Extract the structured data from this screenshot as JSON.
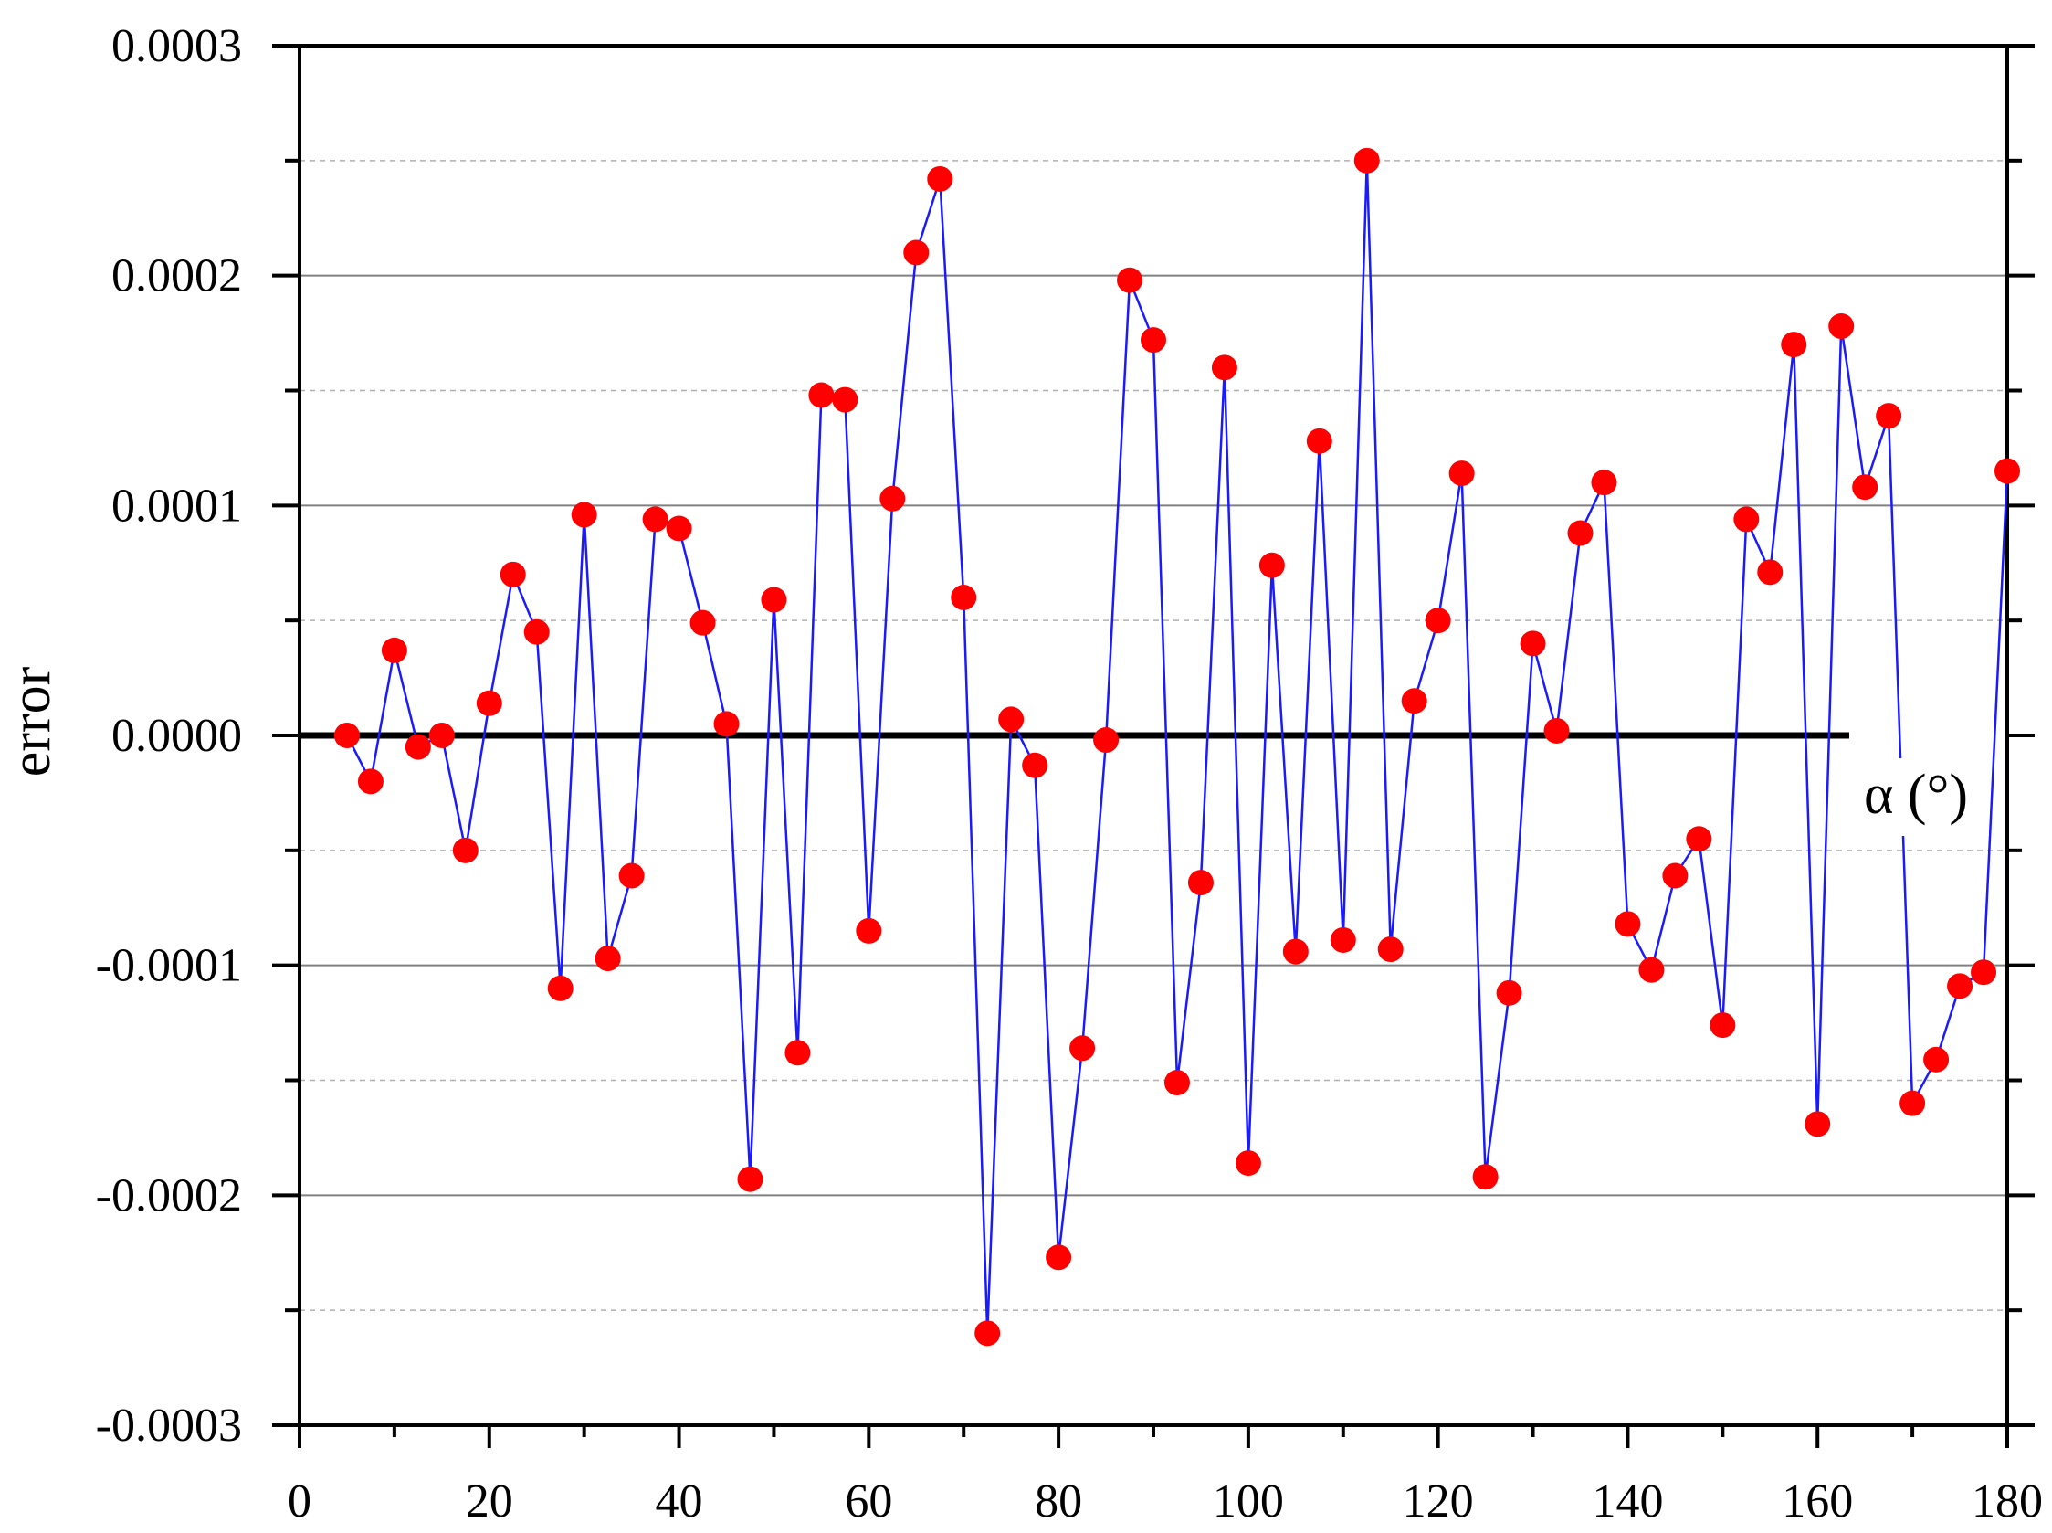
{
  "chart_data": {
    "type": "line",
    "title": "",
    "xlabel": "α (°)",
    "ylabel": "error",
    "xlim": [
      0,
      180
    ],
    "ylim": [
      -0.0003,
      0.0003
    ],
    "x_ticks": [
      "0",
      "20",
      "40",
      "60",
      "80",
      "100",
      "120",
      "140",
      "160",
      "180"
    ],
    "y_ticks": [
      "-0.0003",
      "-0.0002",
      "-0.0001",
      "0.0000",
      "0.0001",
      "0.0002",
      "0.0003"
    ],
    "grid": true,
    "legend": "none",
    "colors": {
      "line": "#1a1aff",
      "marker": "#ff0000",
      "zero_line": "#000000",
      "grid_major": "#808080",
      "grid_minor": "#b0b0b0"
    },
    "series": [
      {
        "x": [
          5,
          7.5,
          10,
          12.5,
          15,
          17.5,
          20,
          22.5,
          25,
          27.5,
          30,
          32.5,
          35,
          37.5,
          40,
          42.5,
          45,
          47.5,
          50,
          52.5,
          55,
          57.5,
          60,
          62.5,
          65,
          67.5,
          70,
          72.5,
          75,
          77.5,
          80,
          82.5,
          85,
          87.5,
          90,
          92.5,
          95,
          97.5,
          100,
          102.5,
          105,
          107.5,
          110,
          112.5,
          115,
          117.5,
          120,
          122.5,
          125,
          127.5,
          130,
          132.5,
          135,
          137.5,
          140,
          142.5,
          145,
          147.5,
          150,
          152.5,
          155,
          157.5,
          160,
          162.5,
          165,
          167.5,
          170,
          172.5,
          175,
          177.5,
          180
        ],
        "values": [
          0.0,
          -2e-05,
          3.7e-05,
          -5e-06,
          0.0,
          -5e-05,
          1.4e-05,
          7e-05,
          4.5e-05,
          -0.00011,
          9.6e-05,
          -9.7e-05,
          -6.1e-05,
          9.4e-05,
          9e-05,
          4.9e-05,
          5e-06,
          -0.000193,
          5.9e-05,
          -0.000138,
          0.000148,
          0.000146,
          -8.5e-05,
          0.000103,
          0.00021,
          0.000242,
          6e-05,
          -0.00026,
          7e-06,
          -1.3e-05,
          -0.000227,
          -0.000136,
          -2e-06,
          0.000198,
          0.000172,
          -0.000151,
          -6.4e-05,
          0.00016,
          -0.000186,
          7.4e-05,
          -9.4e-05,
          0.000128,
          -8.9e-05,
          0.00025,
          -9.3e-05,
          1.5e-05,
          5e-05,
          0.000114,
          -0.000192,
          -0.000112,
          4e-05,
          2e-06,
          8.8e-05,
          0.00011,
          -8.2e-05,
          -0.000102,
          -6.1e-05,
          -4.5e-05,
          -0.000126,
          9.4e-05,
          7.1e-05,
          0.00017,
          -0.000169,
          0.000178,
          0.000108,
          0.000139,
          -0.00016,
          -0.000141,
          -0.000109,
          -0.000103,
          0.000115
        ]
      }
    ]
  }
}
